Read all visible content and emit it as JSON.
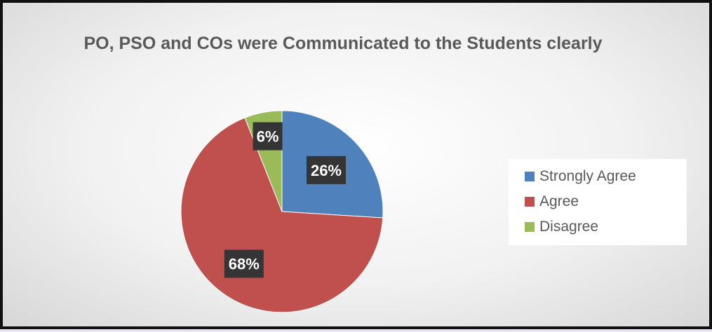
{
  "chart_data": {
    "type": "pie",
    "title": "PO, PSO and COs were Communicated to the Students clearly",
    "categories": [
      "Strongly Agree",
      "Agree",
      "Disagree"
    ],
    "values": [
      26,
      68,
      6
    ],
    "data_labels": [
      "26%",
      "68%",
      "6%"
    ],
    "colors": [
      "#4f81bd",
      "#c0504d",
      "#9bbb59"
    ],
    "legend_position": "right"
  }
}
